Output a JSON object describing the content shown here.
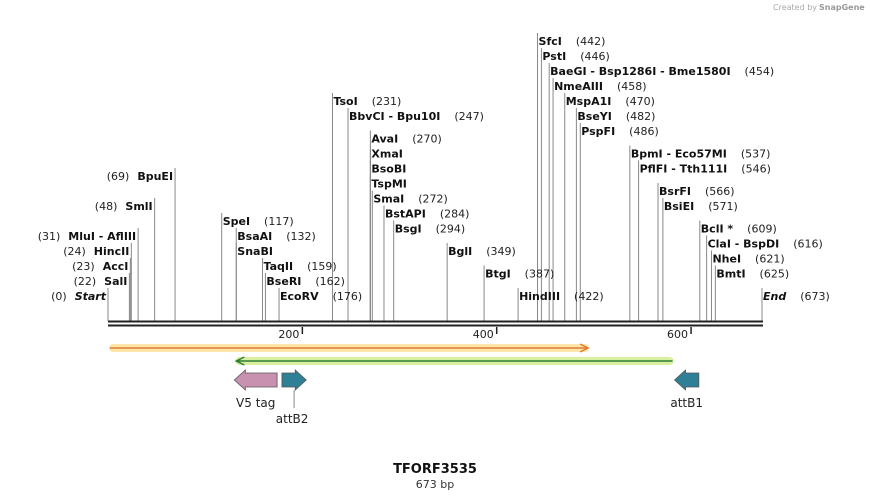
{
  "credit": {
    "prefix": "Created by",
    "brand": "SnapGene"
  },
  "plasmid": {
    "name": "TFORF3535",
    "length_label": "673 bp",
    "length_bp": 673
  },
  "ruler": {
    "ticks": [
      "200",
      "400",
      "600"
    ]
  },
  "sites": [
    {
      "label": "Start",
      "pos": "(0)",
      "bp": 0,
      "side": "left",
      "row": 0,
      "italic": true
    },
    {
      "label": "SalI",
      "pos": "(22)",
      "bp": 22,
      "side": "left",
      "row": 1
    },
    {
      "label": "AccI",
      "pos": "(23)",
      "bp": 23,
      "side": "left",
      "row": 2
    },
    {
      "label": "HincII",
      "pos": "(24)",
      "bp": 24,
      "side": "left",
      "row": 3
    },
    {
      "label": "MluI  -  AflIII",
      "pos": "(31)",
      "bp": 31,
      "side": "left",
      "row": 4
    },
    {
      "label": "SmlI",
      "pos": "(48)",
      "bp": 48,
      "side": "left",
      "row": 6
    },
    {
      "label": "BpuEI",
      "pos": "(69)",
      "bp": 69,
      "side": "left",
      "row": 8
    },
    {
      "label": "SpeI",
      "pos": "(117)",
      "bp": 117,
      "side": "right",
      "row": 5
    },
    {
      "label": "BsaAI",
      "pos": "(132)",
      "bp": 132,
      "side": "right",
      "row": 4
    },
    {
      "label": "SnaBI",
      "pos": "",
      "bp": 132,
      "side": "right",
      "row": 3
    },
    {
      "label": "TaqII",
      "pos": "(159)",
      "bp": 159,
      "side": "right",
      "row": 2
    },
    {
      "label": "BseRI",
      "pos": "(162)",
      "bp": 162,
      "side": "right",
      "row": 1
    },
    {
      "label": "EcoRV",
      "pos": "(176)",
      "bp": 176,
      "side": "right",
      "row": 0
    },
    {
      "label": "TsoI",
      "pos": "(231)",
      "bp": 231,
      "side": "right",
      "row": 13
    },
    {
      "label": "BbvCI  -  Bpu10I",
      "pos": "(247)",
      "bp": 247,
      "side": "right",
      "row": 12
    },
    {
      "label": "AvaI",
      "pos": "(270)",
      "bp": 270,
      "side": "right",
      "row": 10.5
    },
    {
      "label": "XmaI",
      "pos": "",
      "bp": 270,
      "side": "right",
      "row": 9.5
    },
    {
      "label": "BsoBI",
      "pos": "",
      "bp": 270,
      "side": "right",
      "row": 8.5
    },
    {
      "label": "TspMI",
      "pos": "",
      "bp": 270,
      "side": "right",
      "row": 7.5
    },
    {
      "label": "SmaI",
      "pos": "(272)",
      "bp": 272,
      "side": "right",
      "row": 6.5
    },
    {
      "label": "BstAPI",
      "pos": "(284)",
      "bp": 284,
      "side": "right",
      "row": 5.5
    },
    {
      "label": "BsgI",
      "pos": "(294)",
      "bp": 294,
      "side": "right",
      "row": 4.5
    },
    {
      "label": "BglI",
      "pos": "(349)",
      "bp": 349,
      "side": "right",
      "row": 3
    },
    {
      "label": "BtgI",
      "pos": "(387)",
      "bp": 387,
      "side": "right",
      "row": 1.5
    },
    {
      "label": "HindIII",
      "pos": "(422)",
      "bp": 422,
      "side": "right",
      "row": 0
    },
    {
      "label": "SfcI",
      "pos": "(442)",
      "bp": 442,
      "side": "right",
      "row": 17
    },
    {
      "label": "PstI",
      "pos": "(446)",
      "bp": 446,
      "side": "right",
      "row": 16
    },
    {
      "label": "BaeGI  -  Bsp1286I  -  Bme1580I",
      "pos": "(454)",
      "bp": 454,
      "side": "right",
      "row": 15
    },
    {
      "label": "NmeAIII",
      "pos": "(458)",
      "bp": 458,
      "side": "right",
      "row": 14
    },
    {
      "label": "MspA1I",
      "pos": "(470)",
      "bp": 470,
      "side": "right",
      "row": 13
    },
    {
      "label": "BseYI",
      "pos": "(482)",
      "bp": 482,
      "side": "right",
      "row": 12
    },
    {
      "label": "PspFI",
      "pos": "(486)",
      "bp": 486,
      "side": "right",
      "row": 11
    },
    {
      "label": "BpmI  -  Eco57MI",
      "pos": "(537)",
      "bp": 537,
      "side": "right",
      "row": 9.5
    },
    {
      "label": "PflFI  -  Tth111I",
      "pos": "(546)",
      "bp": 546,
      "side": "right",
      "row": 8.5
    },
    {
      "label": "BsrFI",
      "pos": "(566)",
      "bp": 566,
      "side": "right",
      "row": 7
    },
    {
      "label": "BsiEI",
      "pos": "(571)",
      "bp": 571,
      "side": "right",
      "row": 6
    },
    {
      "label": "BclI *",
      "pos": "(609)",
      "bp": 609,
      "side": "right",
      "row": 4.5
    },
    {
      "label": "ClaI  -  BspDI",
      "pos": "(616)",
      "bp": 616,
      "side": "right",
      "row": 3.5
    },
    {
      "label": "NheI",
      "pos": "(621)",
      "bp": 621,
      "side": "right",
      "row": 2.5
    },
    {
      "label": "BmtI",
      "pos": "(625)",
      "bp": 625,
      "side": "right",
      "row": 1.5
    },
    {
      "label": "End",
      "pos": "(673)",
      "bp": 673,
      "side": "right",
      "row": 0,
      "italic": true
    }
  ],
  "bars": [
    {
      "name": "orange-feature",
      "start_bp": 0,
      "end_bp": 496,
      "direction": "forward",
      "color": "#e07b39",
      "glow": "#fde6a8"
    },
    {
      "name": "green-feature",
      "start_bp": 130,
      "end_bp": 583,
      "direction": "reverse",
      "color": "#2e7d32",
      "glow": "#d9f0a3"
    }
  ],
  "features": [
    {
      "label": "V5 tag",
      "start_bp": 130,
      "end_bp": 174,
      "direction": "reverse",
      "color": "#c891b0"
    },
    {
      "label": "attB2",
      "start_bp": 179,
      "end_bp": 204,
      "direction": "forward",
      "color": "#2f7f96"
    },
    {
      "label": "attB1",
      "start_bp": 583,
      "end_bp": 608,
      "direction": "reverse",
      "color": "#2f7f96"
    }
  ],
  "colors": {
    "line": "#888888",
    "backbone": "#222222"
  }
}
